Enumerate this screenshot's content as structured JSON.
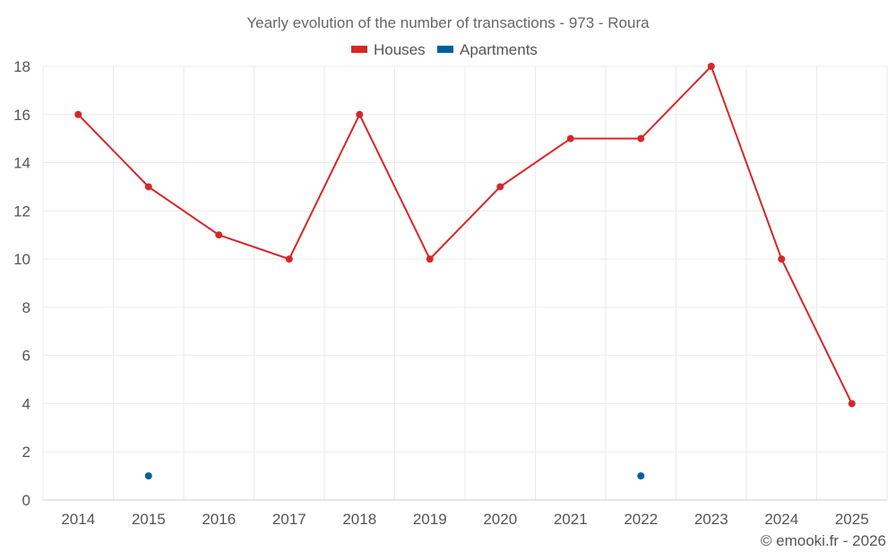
{
  "chart_data": {
    "type": "line",
    "title": "Yearly evolution of the number of transactions - 973 - Roura",
    "categories": [
      "2014",
      "2015",
      "2016",
      "2017",
      "2018",
      "2019",
      "2020",
      "2021",
      "2022",
      "2023",
      "2024",
      "2025"
    ],
    "series": [
      {
        "name": "Houses",
        "color": "#d62728",
        "values": [
          16,
          13,
          11,
          10,
          16,
          10,
          13,
          15,
          15,
          18,
          10,
          4
        ],
        "show_line": true
      },
      {
        "name": "Apartments",
        "color": "#00609c",
        "values": [
          null,
          1,
          null,
          null,
          null,
          null,
          null,
          null,
          1,
          null,
          null,
          null
        ],
        "show_line": false
      }
    ],
    "yticks": [
      0,
      2,
      4,
      6,
      8,
      10,
      12,
      14,
      16,
      18
    ],
    "ylim": [
      0,
      18
    ],
    "xlabel": "",
    "ylabel": "",
    "grid": true,
    "legend_position": "top-center"
  },
  "credit": "© emooki.fr - 2026"
}
